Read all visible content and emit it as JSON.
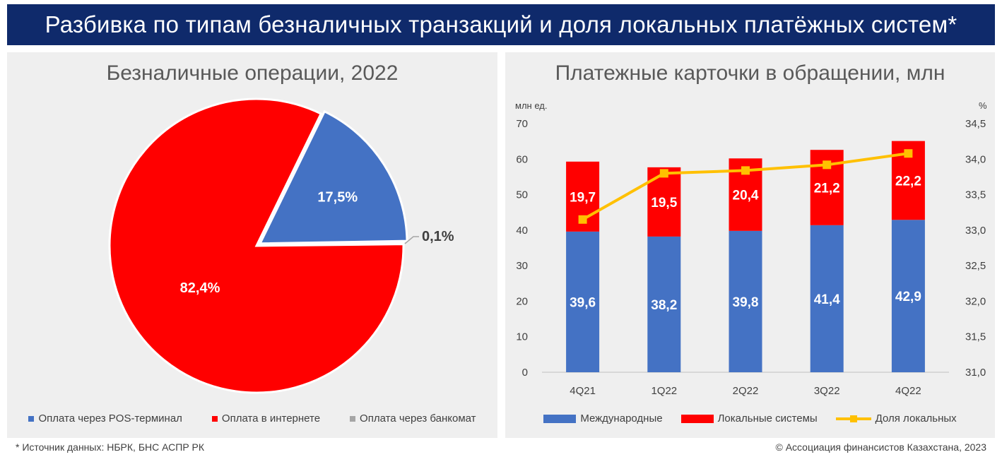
{
  "header": {
    "title": "Разбивка по типам безналичных транзакций и доля локальных платёжных систем*"
  },
  "footer": {
    "source": "* Источник данных: НБРК, БНС АСПР РК",
    "copyright": "© Ассоциация финансистов Казахстана, 2023"
  },
  "chart_data": [
    {
      "type": "pie",
      "title": "Безналичные операции, 2022",
      "slices": [
        {
          "name": "Оплата через POS-терминал",
          "value": 17.5,
          "label": "17,5%",
          "color": "#4472c4"
        },
        {
          "name": "Оплата в интернете",
          "value": 82.4,
          "label": "82,4%",
          "color": "#ff0000"
        },
        {
          "name": "Оплата через банкомат",
          "value": 0.1,
          "label": "0,1%",
          "color": "#a5a5a5"
        }
      ]
    },
    {
      "type": "bar",
      "stacked": true,
      "title": "Платежные карточки в обращении, млн",
      "ylabel_left": "млн ед.",
      "ylabel_right": "%",
      "categories": [
        "4Q21",
        "1Q22",
        "2Q22",
        "3Q22",
        "4Q22"
      ],
      "ylim_left": [
        0,
        70
      ],
      "yticks_left": [
        "0",
        "10",
        "20",
        "30",
        "40",
        "50",
        "60",
        "70"
      ],
      "ylim_right": [
        31.0,
        34.5
      ],
      "yticks_right": [
        "31,0",
        "31,5",
        "32,0",
        "32,5",
        "33,0",
        "33,5",
        "34,0",
        "34,5"
      ],
      "series": [
        {
          "name": "Международные",
          "type": "bar",
          "color": "#4472c4",
          "values": [
            39.6,
            38.2,
            39.8,
            41.4,
            42.9
          ],
          "labels": [
            "39,6",
            "38,2",
            "39,8",
            "41,4",
            "42,9"
          ]
        },
        {
          "name": "Локальные системы",
          "type": "bar",
          "color": "#ff0000",
          "values": [
            19.7,
            19.5,
            20.4,
            21.2,
            22.2
          ],
          "labels": [
            "19,7",
            "19,5",
            "20,4",
            "21,2",
            "22,2"
          ]
        },
        {
          "name": "Доля локальных",
          "type": "line",
          "axis": "right",
          "color": "#ffc000",
          "values": [
            33.15,
            33.8,
            33.84,
            33.92,
            34.08
          ]
        }
      ],
      "grid": false,
      "legend": "bottom"
    }
  ]
}
